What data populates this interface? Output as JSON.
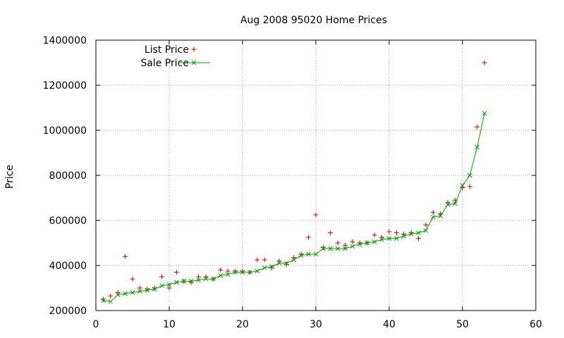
{
  "chart_data": {
    "type": "scatter",
    "title": "Aug 2008 95020 Home Prices",
    "xlabel": "",
    "ylabel": "Price",
    "xlim": [
      0,
      60
    ],
    "ylim": [
      200000,
      1400000
    ],
    "x_ticks": [
      0,
      10,
      20,
      30,
      40,
      50,
      60
    ],
    "y_ticks": [
      200000,
      400000,
      600000,
      800000,
      1000000,
      1200000,
      1400000
    ],
    "x_tick_labels": [
      "0",
      "10",
      "20",
      "30",
      "40",
      "50",
      "60"
    ],
    "y_tick_labels": [
      "200000",
      "400000",
      "600000",
      "800000",
      "1000000",
      "1200000",
      "1400000"
    ],
    "grid": true,
    "legend_position": "top-left",
    "x": [
      1,
      2,
      3,
      4,
      5,
      6,
      7,
      8,
      9,
      10,
      11,
      12,
      13,
      14,
      15,
      16,
      17,
      18,
      19,
      20,
      21,
      22,
      23,
      24,
      25,
      26,
      27,
      28,
      29,
      30,
      31,
      32,
      33,
      34,
      35,
      36,
      37,
      38,
      39,
      40,
      41,
      42,
      43,
      44,
      45,
      46,
      47,
      48,
      49,
      50,
      51,
      52,
      53
    ],
    "series": [
      {
        "name": "List Price",
        "style": "points",
        "marker": "plus",
        "color": "#d00000",
        "values": [
          250000,
          265000,
          280000,
          440000,
          340000,
          300000,
          295000,
          300000,
          350000,
          300000,
          370000,
          330000,
          325000,
          350000,
          350000,
          340000,
          380000,
          375000,
          375000,
          375000,
          370000,
          425000,
          425000,
          390000,
          420000,
          405000,
          435000,
          450000,
          525000,
          625000,
          480000,
          545000,
          500000,
          490000,
          505000,
          500000,
          500000,
          535000,
          525000,
          550000,
          545000,
          540000,
          545000,
          520000,
          580000,
          635000,
          630000,
          680000,
          690000,
          745000,
          750000,
          1015000,
          1300000
        ]
      },
      {
        "name": "Sale Price",
        "style": "linespoints",
        "marker": "cross",
        "color": "#00a000",
        "values": [
          245000,
          240000,
          270000,
          275000,
          280000,
          285000,
          290000,
          295000,
          310000,
          315000,
          325000,
          330000,
          330000,
          335000,
          340000,
          340000,
          355000,
          360000,
          370000,
          370000,
          370000,
          375000,
          390000,
          395000,
          410000,
          410000,
          425000,
          445000,
          450000,
          450000,
          475000,
          475000,
          475000,
          475000,
          485000,
          495000,
          500000,
          505000,
          515000,
          520000,
          520000,
          530000,
          540000,
          545000,
          555000,
          615000,
          620000,
          670000,
          675000,
          755000,
          800000,
          925000,
          1075000
        ]
      }
    ]
  }
}
